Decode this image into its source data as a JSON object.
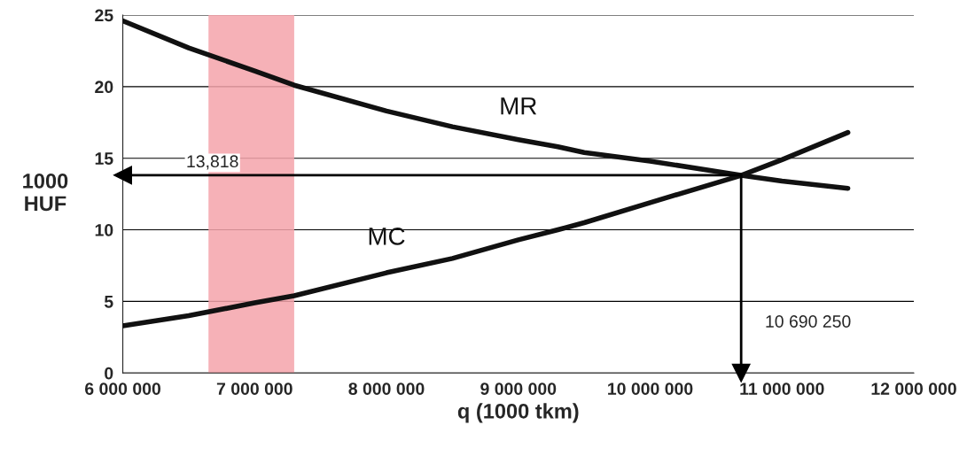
{
  "chart_data": {
    "type": "line",
    "xlabel": "q (1000 tkm)",
    "ylabel": "1000\nHUF",
    "x": [
      6000000,
      6500000,
      7000000,
      7300000,
      8000000,
      8500000,
      9000000,
      9300000,
      9500000,
      10000000,
      10690250,
      11000000,
      11500000
    ],
    "series": [
      {
        "name": "MR",
        "color": "#111111",
        "values": [
          24.6,
          22.7,
          21.1,
          20.1,
          18.3,
          17.2,
          16.3,
          15.8,
          15.4,
          14.8,
          13.8,
          13.4,
          12.9
        ]
      },
      {
        "name": "MC",
        "color": "#111111",
        "values": [
          3.3,
          4.0,
          4.9,
          5.4,
          7.0,
          8.0,
          9.3,
          10.0,
          10.5,
          11.9,
          13.8,
          14.9,
          16.8
        ]
      }
    ],
    "xlim": [
      6000000,
      12000000
    ],
    "xticks": [
      {
        "value": 6000000,
        "label": "6 000 000"
      },
      {
        "value": 7000000,
        "label": "7 000 000"
      },
      {
        "value": 8000000,
        "label": "8 000 000"
      },
      {
        "value": 9000000,
        "label": "9 000 000"
      },
      {
        "value": 10000000,
        "label": "10 000 000"
      },
      {
        "value": 11000000,
        "label": "11 000 000"
      },
      {
        "value": 12000000,
        "label": "12 000 000"
      }
    ],
    "ylim": [
      0,
      25
    ],
    "yticks": [
      0,
      5,
      10,
      15,
      20,
      25
    ],
    "grid": "y",
    "legend": false,
    "marker": "none",
    "line_style": "solid",
    "bands": [
      {
        "axis": "x",
        "from": 6650000,
        "to": 7300000,
        "color": "#f4a3aa"
      }
    ],
    "ref_lines": [
      {
        "axis": "y",
        "value": 13.818,
        "label": "13,818"
      },
      {
        "axis": "x",
        "value": 10690250,
        "label": "10 690 250"
      }
    ]
  }
}
